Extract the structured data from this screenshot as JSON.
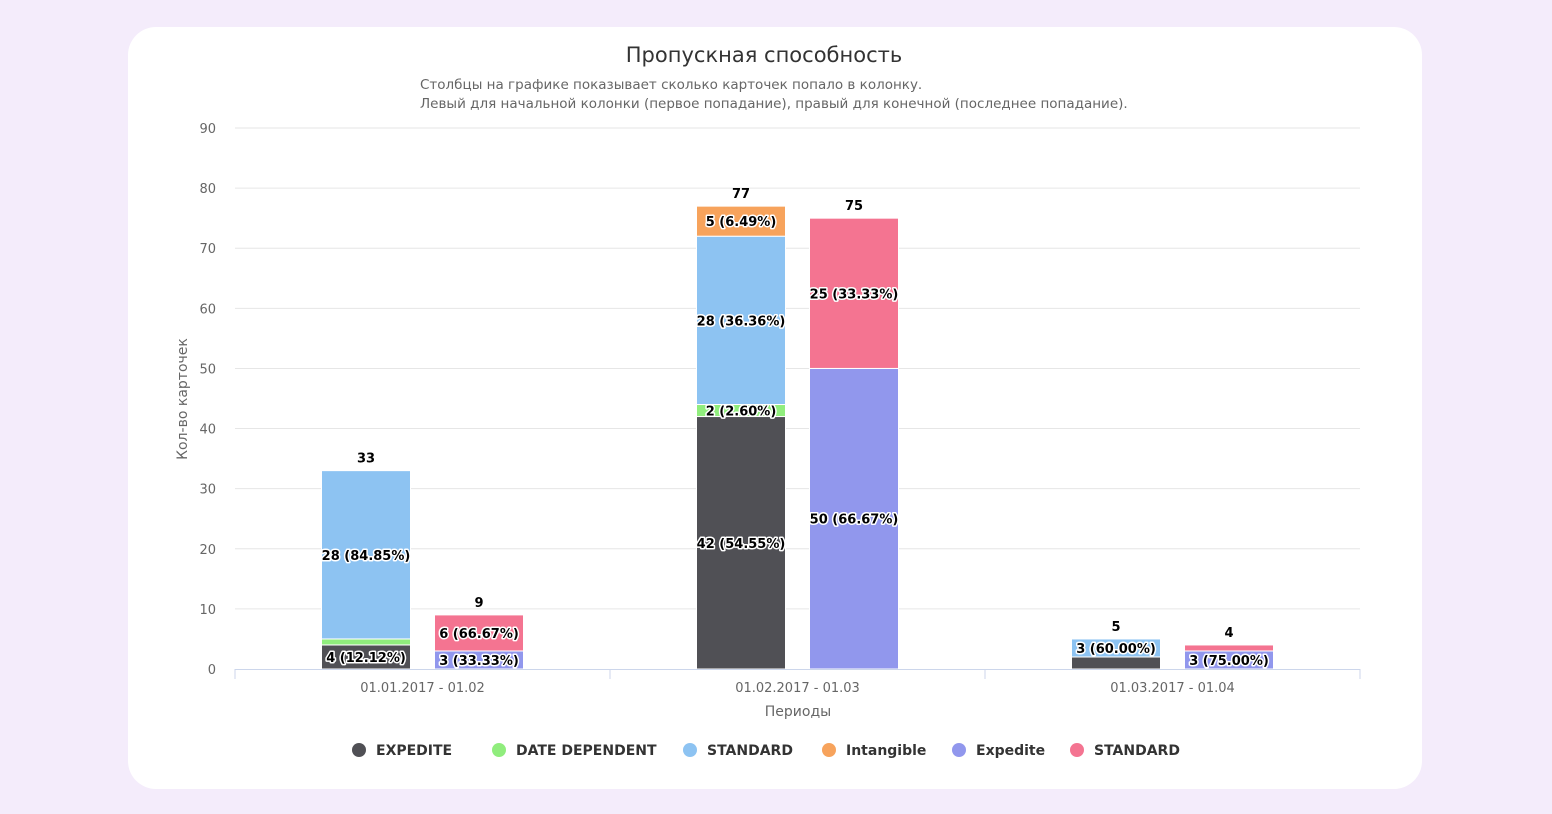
{
  "chart_data": {
    "type": "bar",
    "stacked": true,
    "title": "Пропускная способность",
    "subtitle": [
      "Столбцы на графике показывает сколько карточек попало в колонку.",
      "Левый для начальной колонки (первое попадание), правый для конечной (последнее попадание)."
    ],
    "xlabel": "Периоды",
    "ylabel": "Кол-во карточек",
    "ylim": [
      0,
      90
    ],
    "yticks": [
      0,
      10,
      20,
      30,
      40,
      50,
      60,
      70,
      80,
      90
    ],
    "grid": true,
    "legend_position": "bottom",
    "categories": [
      "01.01.2017 - 01.02",
      "01.02.2017 - 01.03",
      "01.03.2017 - 01.04"
    ],
    "series": [
      {
        "name": "EXPEDITE",
        "stack": "left",
        "color": "#505055",
        "values": [
          4,
          42,
          2
        ],
        "labels": [
          "4 (12.12%)",
          "42 (54.55%)",
          ""
        ]
      },
      {
        "name": "DATE DEPENDENT",
        "stack": "left",
        "color": "#90ed7d",
        "values": [
          1,
          2,
          0
        ],
        "labels": [
          "",
          "2 (2.60%)",
          ""
        ]
      },
      {
        "name": "STANDARD",
        "stack": "left",
        "color": "#8dc3f2",
        "values": [
          28,
          28,
          3
        ],
        "labels": [
          "28 (84.85%)",
          "28 (36.36%)",
          "3 (60.00%)"
        ]
      },
      {
        "name": "Intangible",
        "stack": "left",
        "color": "#f7a35c",
        "values": [
          0,
          5,
          0
        ],
        "labels": [
          "",
          "5 (6.49%)",
          ""
        ]
      },
      {
        "name": "Expedite",
        "stack": "right",
        "color": "#9197ed",
        "values": [
          3,
          50,
          3
        ],
        "labels": [
          "3 (33.33%)",
          "50 (66.67%)",
          "3 (75.00%)"
        ]
      },
      {
        "name": "STANDARD",
        "stack": "right",
        "color": "#f47491",
        "values": [
          6,
          25,
          1
        ],
        "labels": [
          "6 (66.67%)",
          "25 (33.33%)",
          ""
        ]
      }
    ],
    "totals": {
      "left": [
        33,
        77,
        5
      ],
      "right": [
        9,
        75,
        4
      ]
    }
  }
}
